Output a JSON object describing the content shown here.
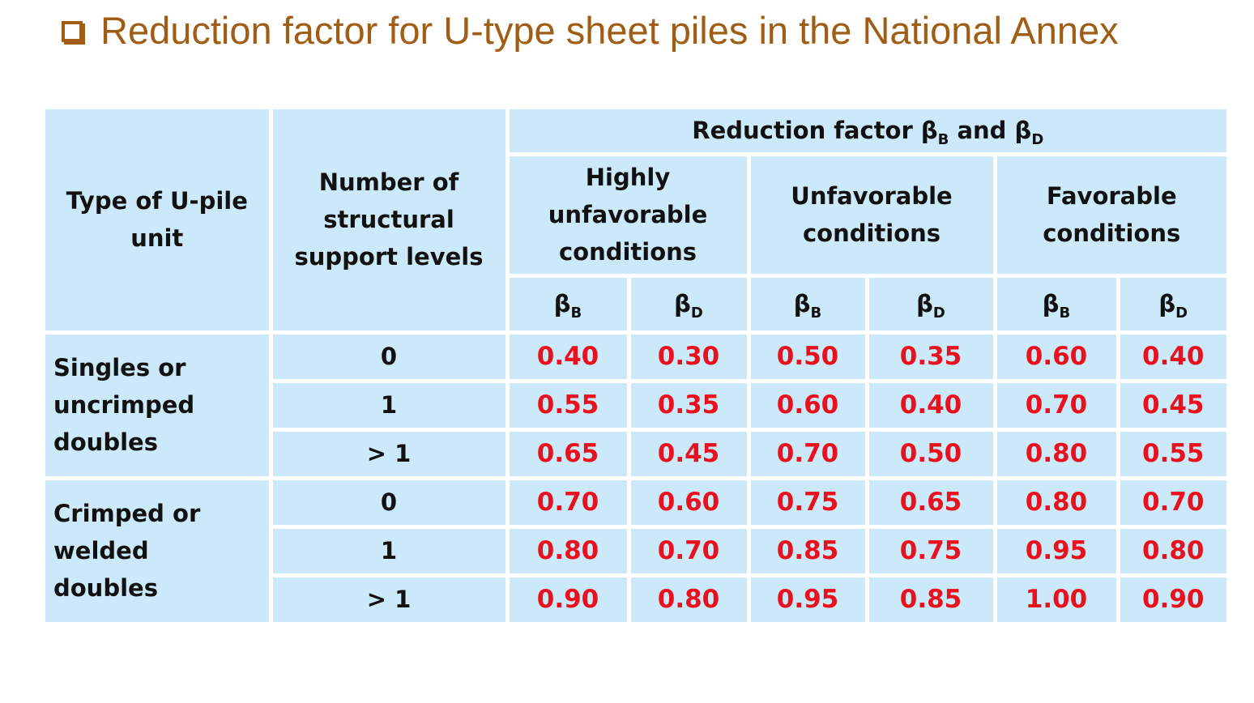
{
  "title": "Reduction factor for U-type sheet piles in the National Annex",
  "header": {
    "col_type": "Type of U-pile unit",
    "col_levels": "Number of structural support levels",
    "group_prefix": "Reduction factor β",
    "group_sub1": "B",
    "group_and": " and β",
    "group_sub2": "D",
    "conditions": [
      "Highly unfavorable conditions",
      "Unfavorable conditions",
      "Favorable conditions"
    ],
    "beta": "β",
    "sub_b": "B",
    "sub_d": "D"
  },
  "groups": [
    {
      "type": "Singles or uncrimped doubles",
      "rows": [
        {
          "levels": "0",
          "values": [
            "0.40",
            "0.30",
            "0.50",
            "0.35",
            "0.60",
            "0.40"
          ]
        },
        {
          "levels": "1",
          "values": [
            "0.55",
            "0.35",
            "0.60",
            "0.40",
            "0.70",
            "0.45"
          ]
        },
        {
          "levels": "> 1",
          "values": [
            "0.65",
            "0.45",
            "0.70",
            "0.50",
            "0.80",
            "0.55"
          ]
        }
      ]
    },
    {
      "type": "Crimped or welded doubles",
      "rows": [
        {
          "levels": "0",
          "values": [
            "0.70",
            "0.60",
            "0.75",
            "0.65",
            "0.80",
            "0.70"
          ]
        },
        {
          "levels": "1",
          "values": [
            "0.80",
            "0.70",
            "0.85",
            "0.75",
            "0.95",
            "0.80"
          ]
        },
        {
          "levels": "> 1",
          "values": [
            "0.90",
            "0.80",
            "0.95",
            "0.85",
            "1.00",
            "0.90"
          ]
        }
      ]
    }
  ],
  "colors": {
    "title": "#a05d16",
    "cell_background": "#cce9f9",
    "value_text": "#e8121e",
    "header_text": "#111111"
  },
  "icons": {
    "title_bullet": "hollow-square-bullet-icon"
  }
}
